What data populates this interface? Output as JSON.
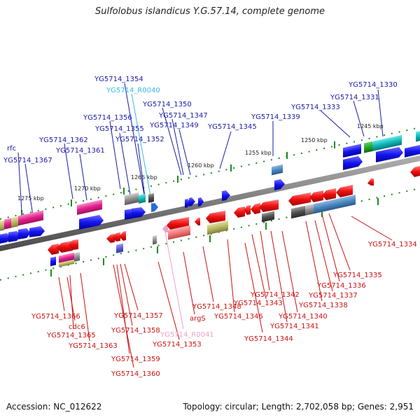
{
  "title": "Sulfolobus islandicus Y.G.57.14, complete genome",
  "footer": {
    "accession": "Accession: NC_012622",
    "summary": "Topology: circular; Length: 2,702,058 bp; Genes: 2,951"
  },
  "colors": {
    "forward_label": "#1a1aa8",
    "reverse_label": "#cc1111",
    "rna_forward_label": "#33bbee",
    "rna_reverse_label": "#f0a0c8",
    "backbone": "#7a7a7a",
    "tick": "#228822"
  },
  "scale_labels": [
    "1275 kbp",
    "1270 kbp",
    "1265 kbp",
    "1260 kbp",
    "1255 kbp",
    "1250 kbp",
    "1245 kbp"
  ],
  "forward_labels": [
    "rfc",
    "YG5714_1367",
    "YG5714_1362",
    "YG5714_1361",
    "YG5714_1356",
    "YG5714_1355",
    "YG5714_1354",
    "YG5714_R0040",
    "YG5714_1352",
    "YG5714_1350",
    "YG5714_1347",
    "YG5714_1349",
    "YG5714_1345",
    "YG5714_1339",
    "YG5714_1333",
    "YG5714_1331",
    "YG5714_1330"
  ],
  "reverse_labels": [
    "YG5714_1334",
    "YG5714_1335",
    "YG5714_1336",
    "YG5714_1337",
    "YG5714_1338",
    "YG5714_1340",
    "YG5714_1341",
    "YG5714_1342",
    "YG5714_1343",
    "YG5714_1344",
    "YG5714_1346",
    "YG5714_1348",
    "argS",
    "YG5714_R0041",
    "YG5714_1353",
    "YG5714_1357",
    "YG5714_1358",
    "YG5714_1359",
    "YG5714_1360",
    "YG5714_1363",
    "YG5714_1365",
    "cdc6",
    "YG5714_1366"
  ]
}
